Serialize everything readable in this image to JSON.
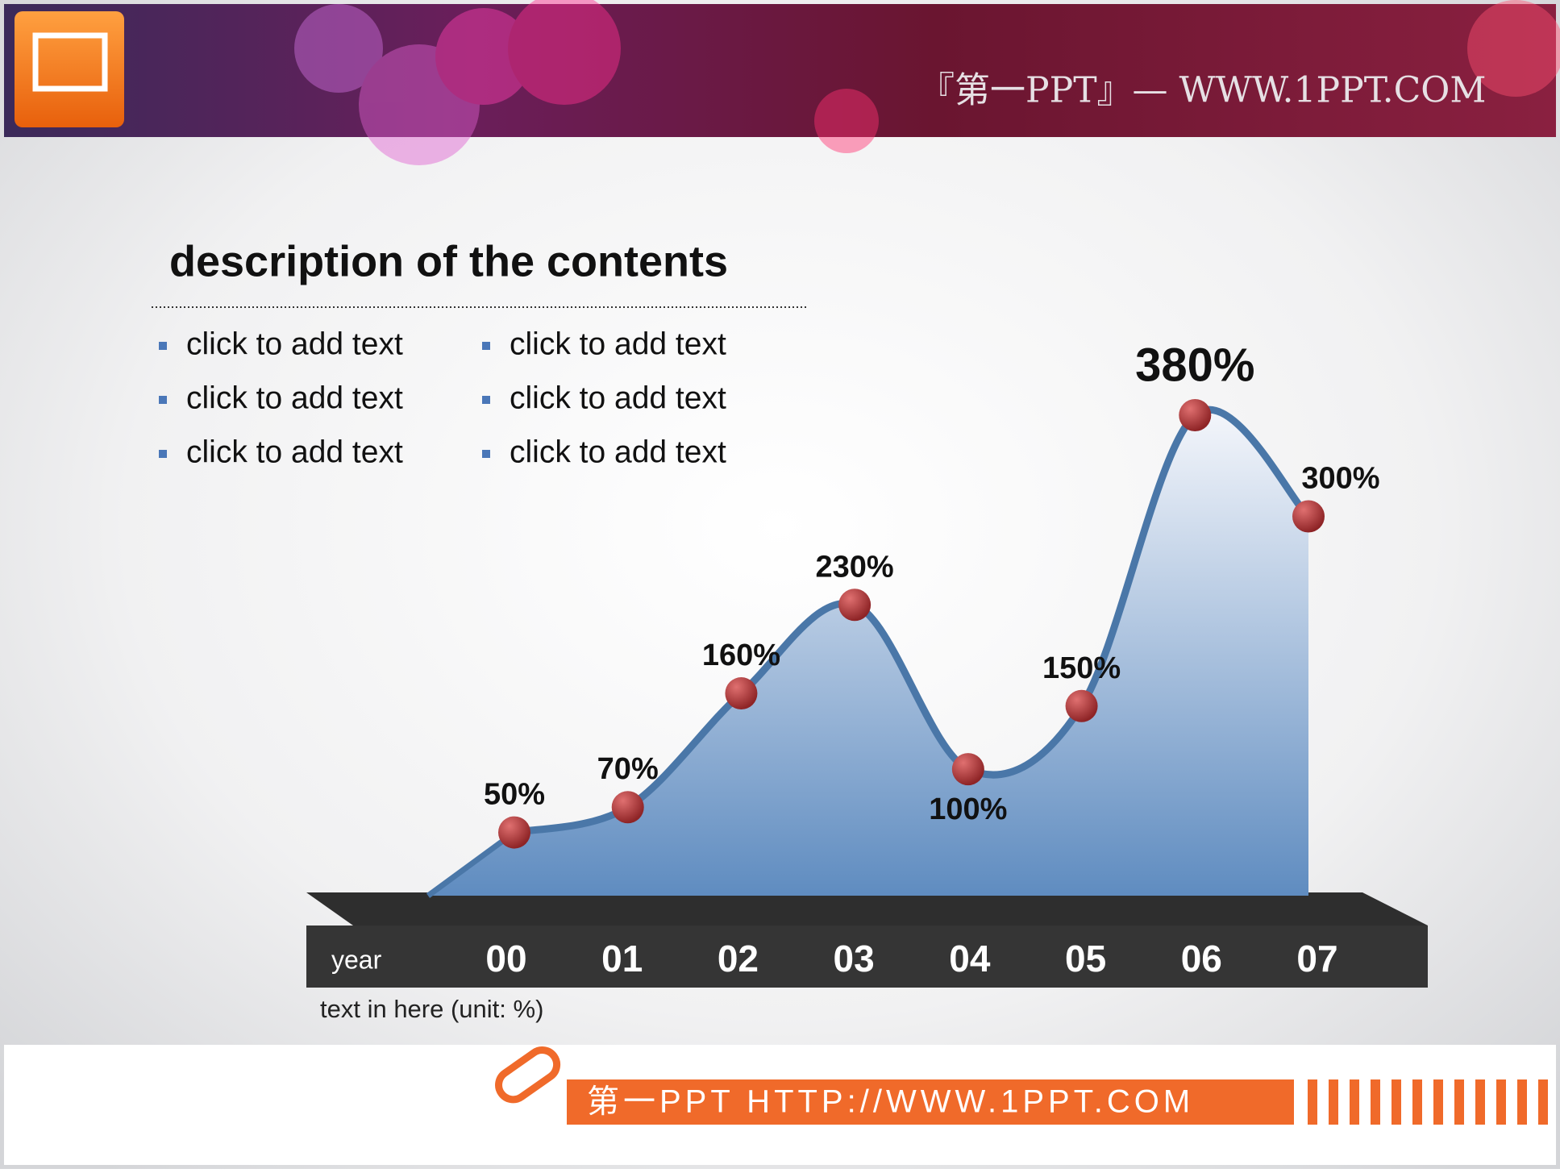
{
  "header": {
    "site": "『第一PPT』— WWW.1PPT.COM"
  },
  "content": {
    "title": "description of the contents",
    "bullets": [
      [
        "click to add text",
        "click to add text",
        "click to add text"
      ],
      [
        "click to add text",
        "click to add text",
        "click to add text"
      ]
    ]
  },
  "chart_data": {
    "type": "area",
    "x_label": "year",
    "note": "text in here  (unit: %)",
    "categories": [
      "00",
      "01",
      "02",
      "03",
      "04",
      "05",
      "06",
      "07"
    ],
    "values": [
      50,
      70,
      160,
      230,
      100,
      150,
      380,
      300
    ],
    "value_labels": [
      "50%",
      "70%",
      "160%",
      "230%",
      "100%",
      "150%",
      "380%",
      "300%"
    ],
    "color": "#4a77a8",
    "marker_color": "#b3383a"
  },
  "footer": {
    "site": "第一PPT HTTP://WWW.1PPT.COM"
  }
}
